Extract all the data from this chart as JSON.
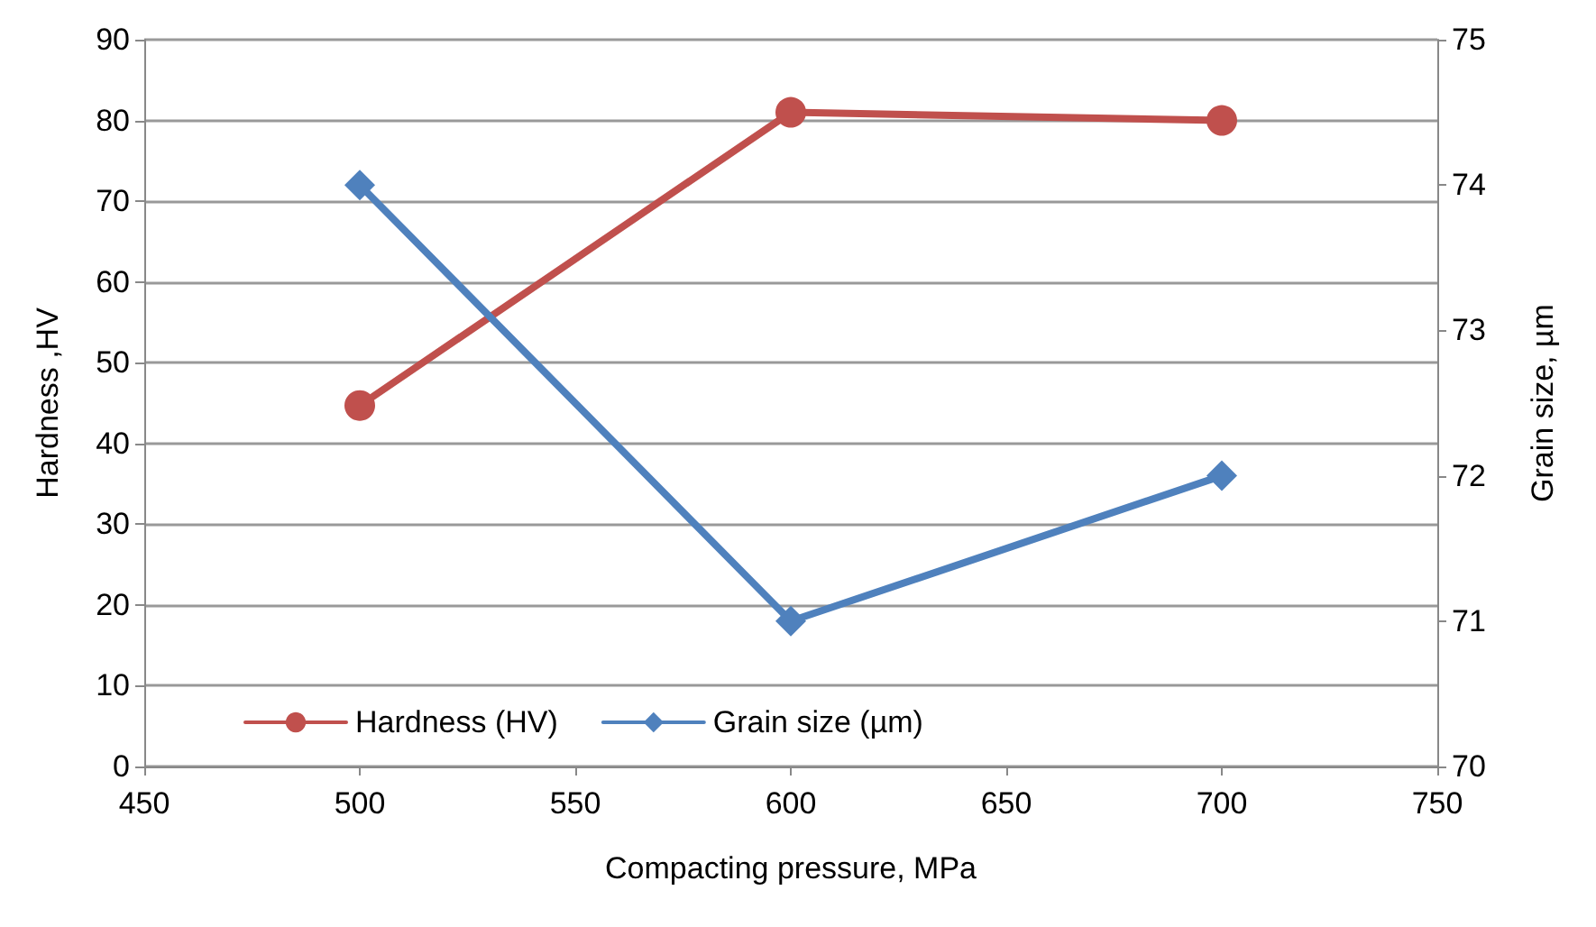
{
  "chart_data": {
    "type": "line",
    "xlabel": "Compacting pressure, MPa",
    "ylabel": "Hardness ,HV",
    "y2label": "Grain size, µm",
    "x": [
      500,
      600,
      700
    ],
    "series": [
      {
        "name": "Hardness (HV)",
        "color": "#c0504d",
        "values": [
          44.7,
          81,
          80
        ],
        "marker": "circle"
      },
      {
        "name": "Grain size (µm)",
        "color": "#4f81bd",
        "values": [
          74,
          71,
          72
        ],
        "marker": "diamond",
        "axis": "y2"
      }
    ],
    "xlim": [
      450,
      750
    ],
    "xticks": [
      450,
      500,
      550,
      600,
      650,
      700,
      750
    ],
    "ylim": [
      0,
      90
    ],
    "yticks": [
      0,
      10,
      20,
      30,
      40,
      50,
      60,
      70,
      80,
      90
    ],
    "y2lim": [
      70,
      75
    ],
    "y2ticks": [
      70,
      71,
      72,
      73,
      74,
      75
    ],
    "grid": "y",
    "legend": "bottom left",
    "line_style": "solid"
  }
}
